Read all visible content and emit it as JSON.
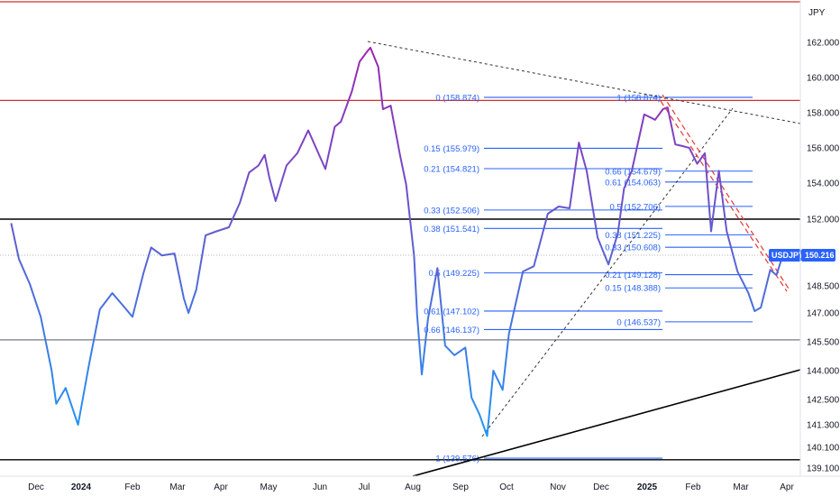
{
  "chart_data": {
    "type": "line",
    "currency_label": "JPY",
    "symbol": "USDJPY",
    "last_price": "150.216",
    "y_ticks": [
      "162.000",
      "160.000",
      "158.000",
      "156.000",
      "154.000",
      "152.000",
      "150.216",
      "148.500",
      "147.000",
      "145.500",
      "144.000",
      "142.500",
      "141.300",
      "140.100",
      "139.100"
    ],
    "x_ticks": [
      "Dec",
      "2024",
      "Feb",
      "Mar",
      "Apr",
      "May",
      "Jun",
      "Jul",
      "Aug",
      "Sep",
      "Oct",
      "Nov",
      "Dec",
      "2025",
      "Feb",
      "Mar",
      "Apr"
    ],
    "series": [
      {
        "x": [
          "2023-11-15",
          "2023-11-20",
          "2023-11-27",
          "2023-12-04",
          "2023-12-11",
          "2023-12-14",
          "2023-12-20",
          "2023-12-28",
          "2024-01-04",
          "2024-01-11",
          "2024-01-19",
          "2024-01-25",
          "2024-02-01",
          "2024-02-08",
          "2024-02-13",
          "2024-02-20",
          "2024-02-28",
          "2024-03-05",
          "2024-03-08",
          "2024-03-13",
          "2024-03-19",
          "2024-03-26",
          "2024-04-03",
          "2024-04-10",
          "2024-04-16",
          "2024-04-22",
          "2024-04-26",
          "2024-04-29",
          "2024-05-03",
          "2024-05-10",
          "2024-05-17",
          "2024-05-24",
          "2024-06-04",
          "2024-06-10",
          "2024-06-14",
          "2024-06-21",
          "2024-06-26",
          "2024-07-01",
          "2024-07-03",
          "2024-07-08",
          "2024-07-11",
          "2024-07-16",
          "2024-07-22",
          "2024-07-26",
          "2024-07-31",
          "2024-08-02",
          "2024-08-05",
          "2024-08-09",
          "2024-08-15",
          "2024-08-20",
          "2024-08-26",
          "2024-09-02",
          "2024-09-06",
          "2024-09-11",
          "2024-09-16",
          "2024-09-20",
          "2024-09-26",
          "2024-09-30",
          "2024-10-03",
          "2024-10-09",
          "2024-10-16",
          "2024-10-25",
          "2024-11-01",
          "2024-11-08",
          "2024-11-14",
          "2024-11-19",
          "2024-11-26",
          "2024-12-03",
          "2024-12-09",
          "2024-12-13",
          "2024-12-18",
          "2024-12-26",
          "2025-01-02",
          "2025-01-07",
          "2025-01-10",
          "2025-01-15",
          "2025-01-20",
          "2025-01-24",
          "2025-01-29",
          "2025-02-03",
          "2025-02-07",
          "2025-02-12",
          "2025-02-17",
          "2025-02-24",
          "2025-03-03",
          "2025-03-07",
          "2025-03-11",
          "2025-03-17",
          "2025-03-21",
          "2025-03-25"
        ],
        "y": [
          151.8,
          150.0,
          148.6,
          146.8,
          144.0,
          142.3,
          143.1,
          141.3,
          144.3,
          147.2,
          148.1,
          147.5,
          146.8,
          149.2,
          150.6,
          150.2,
          150.3,
          147.8,
          147.0,
          148.3,
          151.2,
          151.4,
          151.6,
          152.9,
          154.6,
          155.0,
          155.6,
          154.3,
          153.0,
          155.0,
          155.7,
          157.0,
          154.8,
          157.2,
          157.5,
          159.2,
          160.9,
          161.5,
          161.7,
          160.6,
          158.2,
          158.4,
          155.6,
          153.9,
          150.2,
          146.9,
          143.8,
          146.7,
          149.5,
          145.3,
          144.8,
          145.2,
          142.6,
          141.8,
          140.7,
          144.0,
          143.0,
          145.9,
          147.0,
          149.3,
          149.6,
          152.3,
          152.7,
          152.6,
          156.3,
          154.7,
          151.1,
          149.7,
          151.3,
          153.7,
          154.7,
          157.9,
          157.6,
          158.2,
          158.3,
          156.2,
          156.1,
          156.0,
          155.1,
          155.7,
          151.4,
          154.7,
          151.4,
          149.3,
          148.1,
          147.1,
          147.3,
          149.4,
          149.1,
          150.2
        ]
      }
    ],
    "fib_left": [
      {
        "label": "0 (158.874)",
        "value": 158.874
      },
      {
        "label": "0.15 (155.979)",
        "value": 155.979
      },
      {
        "label": "0.21 (154.821)",
        "value": 154.821
      },
      {
        "label": "0.33 (152.506)",
        "value": 152.506
      },
      {
        "label": "0.38 (151.541)",
        "value": 151.541
      },
      {
        "label": "0.5 (149.225)",
        "value": 149.225
      },
      {
        "label": "0.61 (147.102)",
        "value": 147.102
      },
      {
        "label": "0.66 (146.137)",
        "value": 146.137
      },
      {
        "label": "1 (139.576)",
        "value": 139.576
      }
    ],
    "fib_right": [
      {
        "label": "1 (158.874)",
        "value": 158.874
      },
      {
        "label": "0.66 (154.679)",
        "value": 154.679
      },
      {
        "label": "0.61 (154.063)",
        "value": 154.063
      },
      {
        "label": "0.5 (152.706)",
        "value": 152.706
      },
      {
        "label": "0.38 (151.225)",
        "value": 151.225
      },
      {
        "label": "0.33 (150.608)",
        "value": 150.608
      },
      {
        "label": "0.21 (149.128)",
        "value": 149.128
      },
      {
        "label": "0.15 (148.388)",
        "value": 148.388
      },
      {
        "label": "0 (146.537)",
        "value": 146.537
      }
    ],
    "horizontal_levels": [
      {
        "value": 163.2,
        "color": "#d32f2f"
      },
      {
        "value": 158.7,
        "color": "#d32f2f"
      },
      {
        "value": 152.0,
        "color": "#000000"
      },
      {
        "value": 145.6,
        "color": "#787b86"
      },
      {
        "value": 139.5,
        "color": "#000000"
      }
    ],
    "grid": false,
    "line_colors": {
      "start": "#2196f3",
      "end": "#9c27b0"
    },
    "accent": "#2962ff"
  }
}
